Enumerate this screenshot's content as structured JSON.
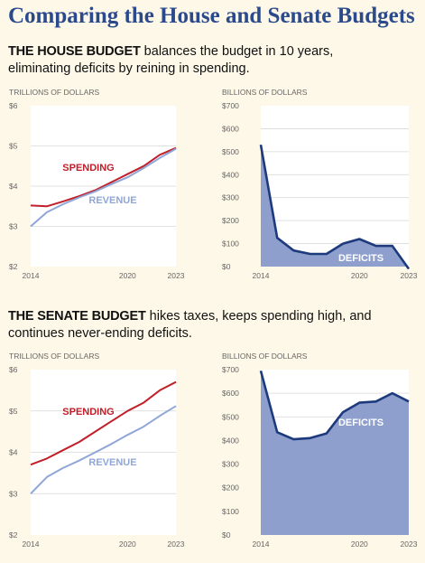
{
  "title": "Comparing the House and Senate Budgets",
  "sections": [
    {
      "lead": "THE HOUSE BUDGET",
      "rest": " balances the budget in 10 years,",
      "line2": "eliminating deficits by reining in spending."
    },
    {
      "lead": "THE SENATE BUDGET",
      "rest": " hikes taxes, keeps spending high, and",
      "line2": "continues never-ending deficits."
    }
  ],
  "colors": {
    "title": "#2b4a8b",
    "spending": "#c0202a",
    "revenue": "#8fa6d6",
    "deficit_line": "#1d3a7d",
    "deficit_fill": "#8e9fcd",
    "axis_text": "#666666",
    "grid": "#d8d8d8",
    "plot_bg": "#ffffff"
  },
  "chart_data": [
    {
      "type": "line",
      "panel": "house-trillions",
      "ylabel": "TRILLIONS OF DOLLARS",
      "x": [
        2014,
        2015,
        2016,
        2017,
        2018,
        2019,
        2020,
        2021,
        2022,
        2023
      ],
      "xticks": [
        "2014",
        "2020",
        "2023"
      ],
      "ylim": [
        2,
        6
      ],
      "yticks": [
        "$2",
        "$3",
        "$4",
        "$5",
        "$6"
      ],
      "grid": true,
      "series": [
        {
          "name": "SPENDING",
          "color": "#c0202a",
          "values": [
            3.52,
            3.5,
            3.62,
            3.75,
            3.9,
            4.1,
            4.3,
            4.5,
            4.78,
            4.95
          ]
        },
        {
          "name": "REVENUE",
          "color": "#8fa6d6",
          "values": [
            3.0,
            3.35,
            3.55,
            3.72,
            3.87,
            4.05,
            4.22,
            4.45,
            4.7,
            4.93
          ]
        }
      ]
    },
    {
      "type": "area",
      "panel": "house-billions",
      "ylabel": "BILLIONS OF DOLLARS",
      "x": [
        2014,
        2015,
        2016,
        2017,
        2018,
        2019,
        2020,
        2021,
        2022,
        2023
      ],
      "xticks": [
        "2014",
        "2020",
        "2023"
      ],
      "ylim": [
        0,
        700
      ],
      "yticks": [
        "$0",
        "$100",
        "$200",
        "$300",
        "$400",
        "$500",
        "$600",
        "$700"
      ],
      "grid": true,
      "series": [
        {
          "name": "DEFICITS",
          "color": "#1d3a7d",
          "values": [
            530,
            125,
            70,
            55,
            55,
            100,
            120,
            90,
            90,
            -10
          ]
        }
      ]
    },
    {
      "type": "line",
      "panel": "senate-trillions",
      "ylabel": "TRILLIONS OF DOLLARS",
      "x": [
        2014,
        2015,
        2016,
        2017,
        2018,
        2019,
        2020,
        2021,
        2022,
        2023
      ],
      "xticks": [
        "2014",
        "2020",
        "2023"
      ],
      "ylim": [
        2,
        6
      ],
      "yticks": [
        "$2",
        "$3",
        "$4",
        "$5",
        "$6"
      ],
      "grid": true,
      "series": [
        {
          "name": "SPENDING",
          "color": "#c0202a",
          "values": [
            3.7,
            3.85,
            4.05,
            4.25,
            4.5,
            4.75,
            5.0,
            5.2,
            5.5,
            5.7
          ]
        },
        {
          "name": "REVENUE",
          "color": "#8fa6d6",
          "values": [
            3.0,
            3.4,
            3.62,
            3.8,
            4.0,
            4.2,
            4.42,
            4.62,
            4.88,
            5.12
          ]
        }
      ]
    },
    {
      "type": "area",
      "panel": "senate-billions",
      "ylabel": "BILLIONS OF DOLLARS",
      "x": [
        2014,
        2015,
        2016,
        2017,
        2018,
        2019,
        2020,
        2021,
        2022,
        2023
      ],
      "xticks": [
        "2014",
        "2020",
        "2023"
      ],
      "ylim": [
        0,
        700
      ],
      "yticks": [
        "$0",
        "$100",
        "$200",
        "$300",
        "$400",
        "$500",
        "$600",
        "$700"
      ],
      "grid": true,
      "series": [
        {
          "name": "DEFICITS",
          "color": "#1d3a7d",
          "values": [
            695,
            435,
            405,
            410,
            430,
            520,
            560,
            565,
            600,
            565
          ]
        }
      ]
    }
  ]
}
